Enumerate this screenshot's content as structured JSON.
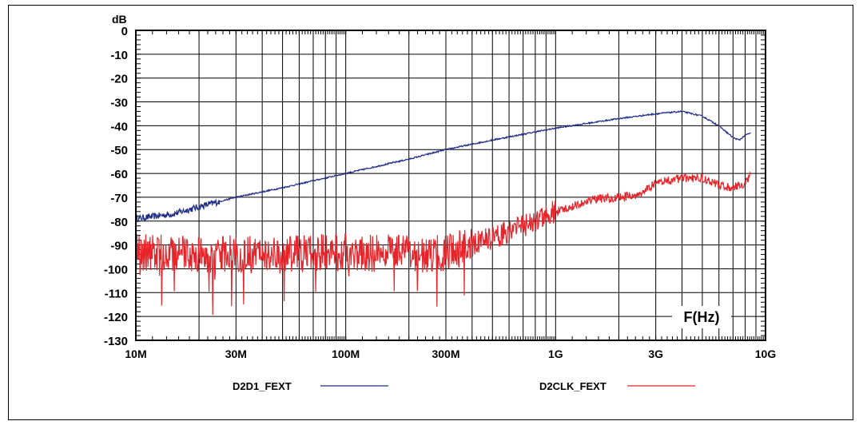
{
  "chart_data": {
    "type": "line",
    "title": "",
    "xlabel": "F(Hz)",
    "ylabel": "dB",
    "x_scale": "log",
    "xlim": [
      "10M",
      "10G"
    ],
    "ylim": [
      -130,
      0
    ],
    "y_ticks": [
      0,
      -10,
      -20,
      -30,
      -40,
      -50,
      -60,
      -70,
      -80,
      -90,
      -100,
      -110,
      -120,
      -130
    ],
    "x_ticks": [
      "10M",
      "30M",
      "100M",
      "300M",
      "1G",
      "3G",
      "10G"
    ],
    "grid": true,
    "legend_position": "bottom",
    "series": [
      {
        "name": "D2D1_FEXT",
        "color": "#1f2d86",
        "points": [
          [
            "10M",
            -79
          ],
          [
            "15M",
            -77
          ],
          [
            "20M",
            -74
          ],
          [
            "30M",
            -70
          ],
          [
            "50M",
            -66
          ],
          [
            "100M",
            -60
          ],
          [
            "200M",
            -54
          ],
          [
            "300M",
            -50
          ],
          [
            "500M",
            -46
          ],
          [
            "1G",
            -41
          ],
          [
            "2G",
            -37
          ],
          [
            "3G",
            -35
          ],
          [
            "4G",
            -34
          ],
          [
            "5G",
            -36
          ],
          [
            "6G",
            -40
          ],
          [
            "7G",
            -45
          ],
          [
            "7.5G",
            -46
          ],
          [
            "8G",
            -44
          ],
          [
            "8.5G",
            -43
          ]
        ]
      },
      {
        "name": "D2CLK_FEXT",
        "color": "#e8242b",
        "points": [
          [
            "10M",
            -93
          ],
          [
            "20M",
            -94
          ],
          [
            "50M",
            -94
          ],
          [
            "100M",
            -93
          ],
          [
            "200M",
            -94
          ],
          [
            "300M",
            -93
          ],
          [
            "400M",
            -90
          ],
          [
            "500M",
            -87
          ],
          [
            "700M",
            -82
          ],
          [
            "1G",
            -76
          ],
          [
            "1.5G",
            -71
          ],
          [
            "2G",
            -70
          ],
          [
            "2.5G",
            -69
          ],
          [
            "3G",
            -64
          ],
          [
            "4G",
            -62
          ],
          [
            "5G",
            -62
          ],
          [
            "6G",
            -65
          ],
          [
            "7G",
            -66
          ],
          [
            "8G",
            -64
          ],
          [
            "8.5G",
            -60
          ]
        ]
      }
    ]
  }
}
